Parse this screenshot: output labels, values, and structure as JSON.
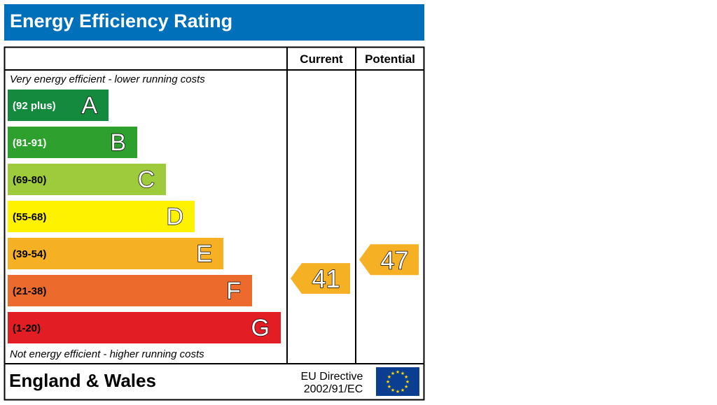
{
  "title": "Energy Efficiency Rating",
  "columns": {
    "current": "Current",
    "potential": "Potential"
  },
  "top_note": "Very energy efficient - lower running costs",
  "bottom_note": "Not energy efficient - higher running costs",
  "footer": {
    "region": "England & Wales",
    "directive_line1": "EU Directive",
    "directive_line2": "2002/91/EC",
    "flag_icon": "eu-flag-icon"
  },
  "chart_data": {
    "type": "bar",
    "bands": [
      {
        "letter": "A",
        "range": "(92 plus)",
        "color": "#148a3f",
        "label_color": "#ffffff"
      },
      {
        "letter": "B",
        "range": "(81-91)",
        "color": "#2ea02d",
        "label_color": "#ffffff"
      },
      {
        "letter": "C",
        "range": "(69-80)",
        "color": "#9dcb3c",
        "label_color": "#000000"
      },
      {
        "letter": "D",
        "range": "(55-68)",
        "color": "#fff200",
        "label_color": "#000000"
      },
      {
        "letter": "E",
        "range": "(39-54)",
        "color": "#f5b024",
        "label_color": "#000000"
      },
      {
        "letter": "F",
        "range": "(21-38)",
        "color": "#ec6a2b",
        "label_color": "#000000"
      },
      {
        "letter": "G",
        "range": "(1-20)",
        "color": "#e31d24",
        "label_color": "#000000"
      }
    ],
    "current": {
      "value": 41,
      "band": "E",
      "color": "#f5b024"
    },
    "potential": {
      "value": 47,
      "band": "E",
      "color": "#f5b024"
    }
  }
}
